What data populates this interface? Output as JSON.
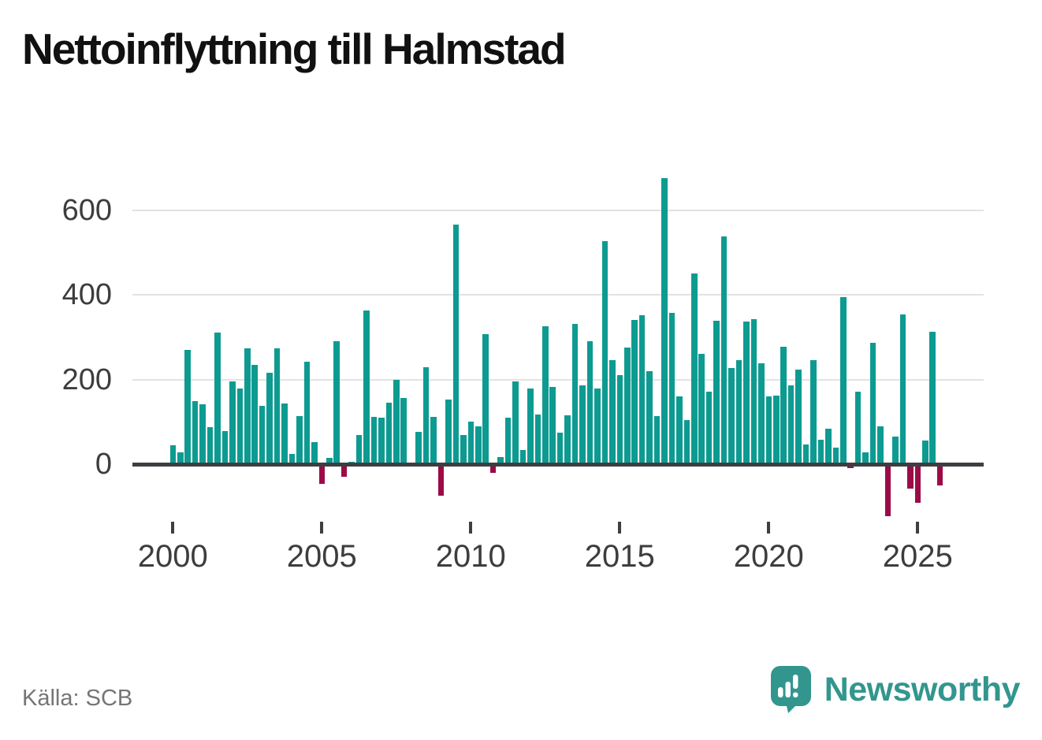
{
  "title": "Nettoinflyttning till Halmstad",
  "source": "Källa: SCB",
  "branding": {
    "logo_text": "Newsworthy",
    "logo_icon": "newsworthy-speech-bubble-barchart-icon"
  },
  "colors": {
    "positive_bar": "#0d9b91",
    "negative_bar": "#9c0b48",
    "grid": "#e2e2e2",
    "axis": "#3b3f42",
    "tick_text": "#3d3d3d",
    "title_text": "#111111",
    "source_text": "#757575",
    "brand_teal": "#33968e"
  },
  "chart_data": {
    "type": "bar",
    "title": "Nettoinflyttning till Halmstad",
    "xlabel": "",
    "ylabel": "",
    "grid": "horizontal",
    "legend": "none",
    "y_ticks": [
      0,
      200,
      400,
      600
    ],
    "x_tick_labels": [
      "2000",
      "2005",
      "2010",
      "2015",
      "2020",
      "2025"
    ],
    "ylim": [
      -140,
      700
    ],
    "categories": [
      "2000Q1",
      "2000Q2",
      "2000Q3",
      "2000Q4",
      "2001Q1",
      "2001Q2",
      "2001Q3",
      "2001Q4",
      "2002Q1",
      "2002Q2",
      "2002Q3",
      "2002Q4",
      "2003Q1",
      "2003Q2",
      "2003Q3",
      "2003Q4",
      "2004Q1",
      "2004Q2",
      "2004Q3",
      "2004Q4",
      "2005Q1",
      "2005Q2",
      "2005Q3",
      "2005Q4",
      "2006Q1",
      "2006Q2",
      "2006Q3",
      "2006Q4",
      "2007Q1",
      "2007Q2",
      "2007Q3",
      "2007Q4",
      "2008Q1",
      "2008Q2",
      "2008Q3",
      "2008Q4",
      "2009Q1",
      "2009Q2",
      "2009Q3",
      "2009Q4",
      "2010Q1",
      "2010Q2",
      "2010Q3",
      "2010Q4",
      "2011Q1",
      "2011Q2",
      "2011Q3",
      "2011Q4",
      "2012Q1",
      "2012Q2",
      "2012Q3",
      "2012Q4",
      "2013Q1",
      "2013Q2",
      "2013Q3",
      "2013Q4",
      "2014Q1",
      "2014Q2",
      "2014Q3",
      "2014Q4",
      "2015Q1",
      "2015Q2",
      "2015Q3",
      "2015Q4",
      "2016Q1",
      "2016Q2",
      "2016Q3",
      "2016Q4",
      "2017Q1",
      "2017Q2",
      "2017Q3",
      "2017Q4",
      "2018Q1",
      "2018Q2",
      "2018Q3",
      "2018Q4",
      "2019Q1",
      "2019Q2",
      "2019Q3",
      "2019Q4",
      "2020Q1",
      "2020Q2",
      "2020Q3",
      "2020Q4",
      "2021Q1",
      "2021Q2",
      "2021Q3",
      "2021Q4",
      "2022Q1",
      "2022Q2",
      "2022Q3",
      "2022Q4",
      "2023Q1",
      "2023Q2",
      "2023Q3",
      "2023Q4",
      "2024Q1",
      "2024Q2",
      "2024Q3",
      "2024Q4",
      "2025Q1",
      "2025Q2",
      "2025Q3",
      "2025Q4"
    ],
    "values": [
      44,
      27,
      270,
      148,
      142,
      87,
      310,
      79,
      196,
      179,
      273,
      235,
      137,
      215,
      273,
      143,
      25,
      113,
      242,
      53,
      -46,
      15,
      291,
      -30,
      5,
      69,
      363,
      112,
      110,
      145,
      199,
      157,
      2,
      77,
      228,
      112,
      -74,
      152,
      565,
      69,
      101,
      90,
      308,
      -20,
      16,
      109,
      196,
      34,
      179,
      118,
      325,
      183,
      75,
      115,
      331,
      186,
      290,
      179,
      526,
      246,
      210,
      275,
      341,
      351,
      220,
      114,
      675,
      358,
      160,
      105,
      450,
      260,
      172,
      339,
      538,
      227,
      246,
      337,
      342,
      238,
      160,
      162,
      278,
      186,
      224,
      47,
      246,
      57,
      83,
      39,
      395,
      -10,
      171,
      28,
      286,
      90,
      -122,
      65,
      353,
      -57,
      -92,
      55,
      313,
      -51
    ]
  }
}
